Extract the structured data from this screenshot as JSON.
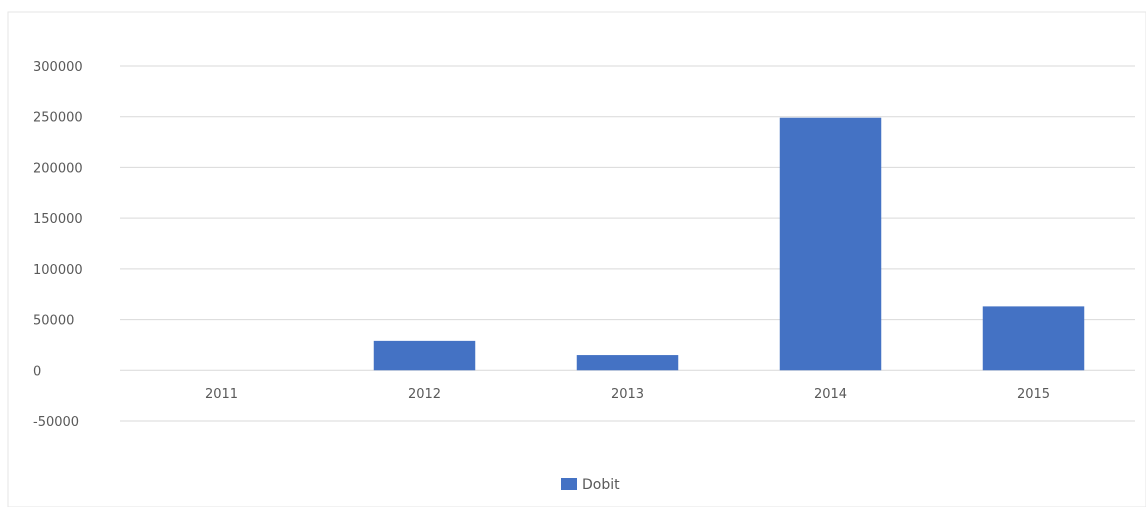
{
  "chart_data": {
    "type": "bar",
    "categories": [
      "2011",
      "2012",
      "2013",
      "2014",
      "2015"
    ],
    "series": [
      {
        "name": "Dobit",
        "values": [
          0,
          29000,
          15000,
          249000,
          63000
        ],
        "color": "#4472C4"
      }
    ],
    "ylim": [
      -50000,
      300000
    ],
    "yticks": [
      300000,
      250000,
      200000,
      150000,
      100000,
      50000,
      0,
      -50000
    ],
    "ytick_labels": [
      "300000",
      "250000",
      "200000",
      "150000",
      "100000",
      "50000",
      "0",
      "-50000"
    ],
    "grid": true,
    "grid_color": "#d9d9d9",
    "tick_label_color": "#595959",
    "legend_position": "bottom"
  }
}
